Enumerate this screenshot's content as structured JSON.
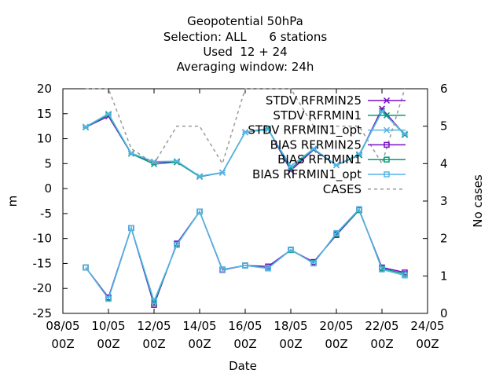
{
  "chart_data": {
    "type": "line",
    "title_lines": [
      "Geopotential 50hPa",
      "Selection: ALL      6 stations",
      "Used  12 + 24",
      "Averaging window: 24h"
    ],
    "xlabel": "Date",
    "ylabel": "m",
    "y2label": "No cases",
    "ylim": [
      -25,
      20
    ],
    "y2lim": [
      0,
      6
    ],
    "xlim": [
      0,
      16
    ],
    "yticks": [
      20,
      15,
      10,
      5,
      0,
      -5,
      -10,
      -15,
      -20,
      -25
    ],
    "y2ticks": [
      6,
      5,
      4,
      3,
      2,
      1,
      0
    ],
    "xticks": [
      {
        "x": 0,
        "line1": "08/05",
        "line2": "00Z"
      },
      {
        "x": 2,
        "line1": "10/05",
        "line2": "00Z"
      },
      {
        "x": 4,
        "line1": "12/05",
        "line2": "00Z"
      },
      {
        "x": 6,
        "line1": "14/05",
        "line2": "00Z"
      },
      {
        "x": 8,
        "line1": "16/05",
        "line2": "00Z"
      },
      {
        "x": 10,
        "line1": "18/05",
        "line2": "00Z"
      },
      {
        "x": 12,
        "line1": "20/05",
        "line2": "00Z"
      },
      {
        "x": 14,
        "line1": "22/05",
        "line2": "00Z"
      },
      {
        "x": 16,
        "line1": "24/05",
        "line2": "00Z"
      }
    ],
    "x": [
      1,
      2,
      3,
      4,
      5,
      6,
      7,
      8,
      9,
      10,
      11,
      12,
      13,
      14,
      15
    ],
    "series": [
      {
        "name": "STDV RFRMIN25",
        "color": "#7b0fc8",
        "marker": "x",
        "axis": "y1",
        "values": [
          12.3,
          14.5,
          7.0,
          5.3,
          5.3,
          2.4,
          3.2,
          11.3,
          12.0,
          3.6,
          7.8,
          4.7,
          6.7,
          16.0,
          10.8
        ]
      },
      {
        "name": "STDV RFRMIN1",
        "color": "#009e73",
        "marker": "x",
        "axis": "y1",
        "values": [
          12.3,
          14.8,
          7.0,
          4.9,
          5.3,
          2.4,
          3.2,
          11.3,
          12.0,
          4.0,
          7.9,
          4.7,
          6.7,
          15.5,
          10.8
        ]
      },
      {
        "name": "STDV RFRMIN1_opt",
        "color": "#56b4e9",
        "marker": "x",
        "axis": "y1",
        "values": [
          12.4,
          15.0,
          7.1,
          5.4,
          5.5,
          2.5,
          3.2,
          11.3,
          11.8,
          4.5,
          8.0,
          4.7,
          6.9,
          15.4,
          11.0
        ]
      },
      {
        "name": "BIAS RFRMIN25",
        "color": "#7b0fc8",
        "marker": "square",
        "axis": "y1",
        "values": [
          -15.8,
          -21.8,
          -7.9,
          -23.3,
          -11.0,
          -4.6,
          -16.3,
          -15.4,
          -15.6,
          -12.3,
          -14.7,
          -9.3,
          -4.3,
          -15.8,
          -16.8
        ]
      },
      {
        "name": "BIAS RFRMIN1",
        "color": "#009e73",
        "marker": "square",
        "axis": "y1",
        "values": [
          -15.8,
          -22.0,
          -7.9,
          -22.9,
          -11.2,
          -4.6,
          -16.2,
          -15.4,
          -15.9,
          -12.3,
          -14.9,
          -9.1,
          -4.3,
          -16.0,
          -17.1
        ]
      },
      {
        "name": "BIAS RFRMIN1_opt",
        "color": "#56b4e9",
        "marker": "square",
        "axis": "y1",
        "values": [
          -15.8,
          -22.1,
          -7.9,
          -22.5,
          -11.3,
          -4.6,
          -16.2,
          -15.4,
          -16.0,
          -12.2,
          -15.0,
          -8.9,
          -4.1,
          -16.2,
          -17.4
        ]
      },
      {
        "name": "CASES",
        "color": "#999999",
        "marker": "none",
        "dashed": true,
        "axis": "y2",
        "values": [
          6,
          6,
          4.4,
          4,
          5,
          5,
          4,
          6,
          6,
          6,
          5,
          5,
          5,
          4,
          6
        ]
      }
    ]
  }
}
